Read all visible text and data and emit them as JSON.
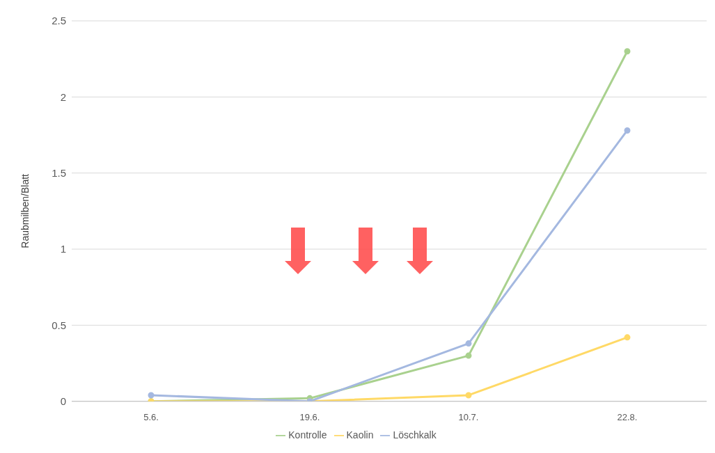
{
  "chart_data": {
    "type": "line",
    "ylabel": "Raubmilben/Blatt",
    "categories": [
      "5.6.",
      "19.6.",
      "10.7.",
      "22.8."
    ],
    "series": [
      {
        "name": "Kontrolle",
        "color": "#a9d18e",
        "values": [
          0.0,
          0.02,
          0.3,
          2.3
        ]
      },
      {
        "name": "Kaolin",
        "color": "#ffd966",
        "values": [
          0.0,
          0.0,
          0.04,
          0.42
        ]
      },
      {
        "name": "Löschkalk",
        "color": "#a4b8e0",
        "values": [
          0.04,
          0.0,
          0.38,
          1.78
        ]
      }
    ],
    "ylim": [
      0,
      2.5
    ],
    "yticks": [
      0,
      0.5,
      1,
      1.5,
      2,
      2.5
    ],
    "grid": "y",
    "legend": "bottom",
    "marker": "circle",
    "line_style": "solid"
  }
}
